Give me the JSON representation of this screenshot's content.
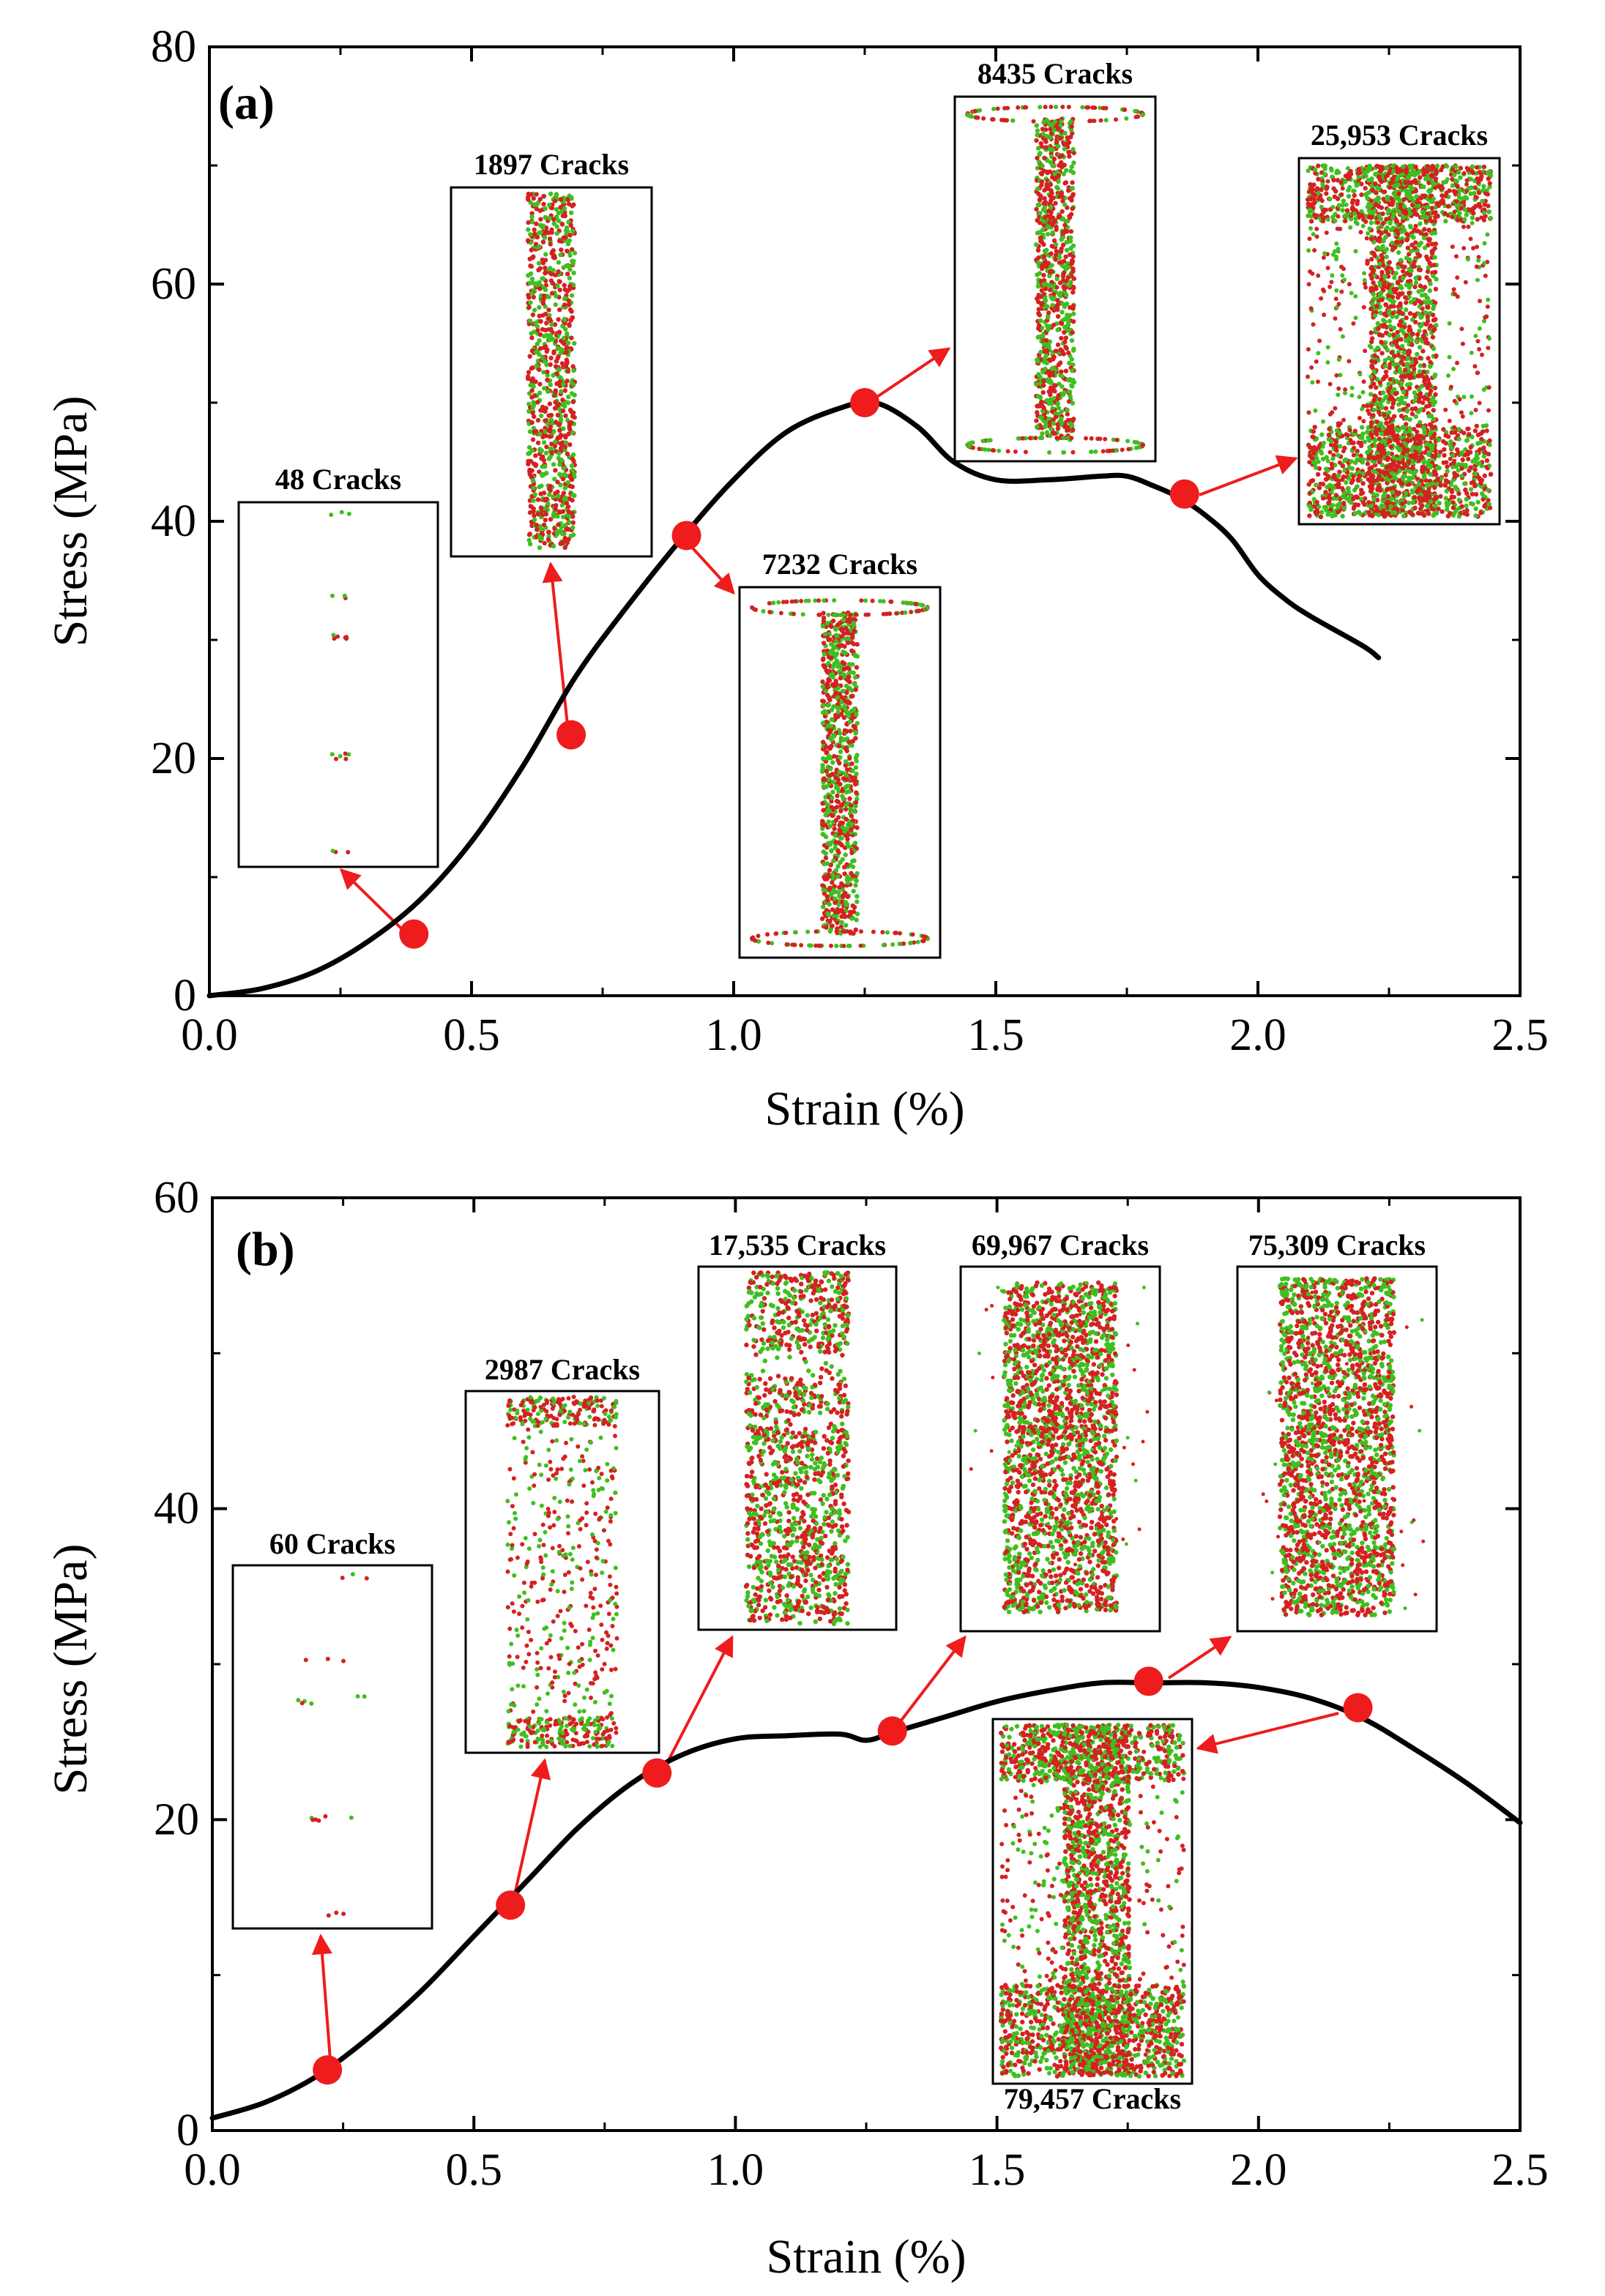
{
  "colors": {
    "curve": "#000000",
    "marker": "#ee1c1c",
    "arrow": "#ee1c1c",
    "crack_red": "#d42121",
    "crack_green": "#3fbf1f"
  },
  "chart_data": [
    {
      "type": "line",
      "panel": "(a)",
      "xlabel": "Strain (%)",
      "ylabel": "Stress (MPa)",
      "xlim": [
        0,
        2.5
      ],
      "ylim": [
        0,
        80
      ],
      "xticks": [
        "0.0",
        "0.5",
        "1.0",
        "1.5",
        "2.0",
        "2.5"
      ],
      "yticks": [
        "0",
        "20",
        "40",
        "60",
        "80"
      ],
      "grid": false,
      "series": [
        {
          "name": "stress-strain",
          "x": [
            0.0,
            0.1,
            0.2,
            0.3,
            0.4,
            0.5,
            0.6,
            0.7,
            0.8,
            0.9,
            1.0,
            1.1,
            1.2,
            1.27,
            1.35,
            1.42,
            1.5,
            1.6,
            1.7,
            1.75,
            1.8,
            1.85,
            1.9,
            1.95,
            2.0,
            2.05,
            2.1,
            2.2,
            2.23
          ],
          "y": [
            0,
            0.6,
            2,
            4.5,
            8,
            13,
            19.5,
            27,
            33,
            38.5,
            43.5,
            47.5,
            49.5,
            50,
            48,
            45,
            43.5,
            43.5,
            43.8,
            43.8,
            43,
            42,
            40.5,
            38.5,
            35.5,
            33.5,
            32,
            29.5,
            28.5
          ]
        }
      ],
      "markers": [
        {
          "x": 0.39,
          "y": 5.2
        },
        {
          "x": 0.69,
          "y": 22
        },
        {
          "x": 0.91,
          "y": 38.8
        },
        {
          "x": 1.25,
          "y": 50
        },
        {
          "x": 1.86,
          "y": 42.3
        }
      ],
      "insets": [
        {
          "label": "48 Cracks",
          "density": "sparse-dots"
        },
        {
          "label": "1897 Cracks",
          "density": "column"
        },
        {
          "label": "7232 Cracks",
          "density": "column-end-rings"
        },
        {
          "label": "8435 Cracks",
          "density": "column-end-rings"
        },
        {
          "label": "25,953 Cracks",
          "density": "c-shape"
        }
      ]
    },
    {
      "type": "line",
      "panel": "(b)",
      "xlabel": "Strain (%)",
      "ylabel": "Stress (MPa)",
      "xlim": [
        0,
        2.5
      ],
      "ylim": [
        0,
        60
      ],
      "xticks": [
        "0.0",
        "0.5",
        "1.0",
        "1.5",
        "2.0",
        "2.5"
      ],
      "yticks": [
        "0",
        "20",
        "40",
        "60"
      ],
      "grid": false,
      "series": [
        {
          "name": "stress-strain",
          "x": [
            0.0,
            0.1,
            0.2,
            0.3,
            0.4,
            0.5,
            0.6,
            0.7,
            0.8,
            0.9,
            1.0,
            1.1,
            1.2,
            1.25,
            1.3,
            1.4,
            1.5,
            1.6,
            1.7,
            1.8,
            1.9,
            2.0,
            2.1,
            2.2,
            2.3,
            2.4,
            2.5
          ],
          "y": [
            0.8,
            1.8,
            3.5,
            6,
            9,
            12.5,
            16,
            19.5,
            22.3,
            24.2,
            25.2,
            25.4,
            25.5,
            25.1,
            25.6,
            26.6,
            27.6,
            28.3,
            28.8,
            28.8,
            28.8,
            28.5,
            27.8,
            26.5,
            24.5,
            22.3,
            19.8
          ]
        }
      ],
      "markers": [
        {
          "x": 0.22,
          "y": 3.9
        },
        {
          "x": 0.57,
          "y": 14.5
        },
        {
          "x": 0.85,
          "y": 23
        },
        {
          "x": 1.3,
          "y": 25.7
        },
        {
          "x": 1.79,
          "y": 28.9
        },
        {
          "x": 2.19,
          "y": 27.2
        }
      ],
      "insets": [
        {
          "label": "60 Cracks",
          "density": "sparse-dots"
        },
        {
          "label": "2987 Cracks",
          "density": "scattered"
        },
        {
          "label": "17,535 Cracks",
          "density": "column-gaps"
        },
        {
          "label": "69,967 Cracks",
          "density": "full"
        },
        {
          "label": "75,309 Cracks",
          "density": "full"
        },
        {
          "label": "79,457 Cracks",
          "density": "c-shape"
        }
      ]
    }
  ]
}
